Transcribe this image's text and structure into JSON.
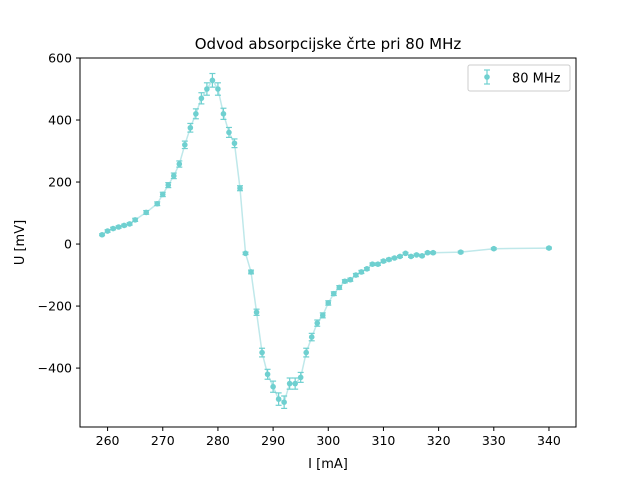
{
  "chart_data": {
    "type": "scatter",
    "title": "Odvod absorpcijske črte pri 80 MHz",
    "xlabel": "I [mA]",
    "ylabel": "U [mV]",
    "xlim": [
      255.0,
      344.9
    ],
    "ylim": [
      -590,
      600
    ],
    "xticks": [
      260,
      270,
      280,
      290,
      300,
      310,
      320,
      330,
      340
    ],
    "yticks": [
      -400,
      -200,
      0,
      200,
      400,
      600
    ],
    "ytick_labels": [
      "−400",
      "−200",
      "0",
      "200",
      "400",
      "600"
    ],
    "grid": false,
    "legend_position": "top-right",
    "colors": {
      "marker": "#6fd0d0",
      "line": "#bfe8ea"
    },
    "series": [
      {
        "name": "80 MHz",
        "x": [
          259,
          260,
          261,
          262,
          263,
          264,
          265,
          267,
          269,
          270,
          271,
          272,
          273,
          274,
          275,
          276,
          277,
          278,
          279,
          280,
          281,
          282,
          283,
          284,
          285,
          286,
          287,
          288,
          289,
          290,
          291,
          292,
          293,
          294,
          295,
          296,
          297,
          298,
          299,
          300,
          301,
          302,
          303,
          304,
          305,
          306,
          307,
          308,
          309,
          310,
          311,
          312,
          313,
          314,
          315,
          316,
          317,
          318,
          319,
          324,
          330,
          340
        ],
        "y": [
          30,
          42,
          50,
          55,
          60,
          65,
          78,
          102,
          130,
          160,
          190,
          220,
          258,
          320,
          375,
          420,
          470,
          500,
          528,
          500,
          420,
          360,
          325,
          180,
          -30,
          -90,
          -220,
          -350,
          -420,
          -460,
          -500,
          -510,
          -450,
          -450,
          -430,
          -350,
          -300,
          -255,
          -230,
          -190,
          -160,
          -140,
          -120,
          -115,
          -100,
          -90,
          -80,
          -65,
          -65,
          -55,
          -50,
          -45,
          -40,
          -30,
          -40,
          -35,
          -38,
          -28,
          -28,
          -26,
          -15,
          -13
        ],
        "err": [
          3,
          4,
          4,
          4,
          4,
          4,
          5,
          6,
          6,
          7,
          8,
          9,
          10,
          12,
          14,
          16,
          18,
          20,
          22,
          20,
          18,
          16,
          14,
          8,
          4,
          6,
          10,
          14,
          16,
          18,
          20,
          20,
          18,
          18,
          16,
          14,
          12,
          10,
          8,
          7,
          6,
          6,
          5,
          5,
          5,
          5,
          4,
          4,
          4,
          4,
          4,
          3,
          3,
          3,
          3,
          3,
          3,
          3,
          3,
          3,
          3,
          3
        ]
      }
    ]
  }
}
